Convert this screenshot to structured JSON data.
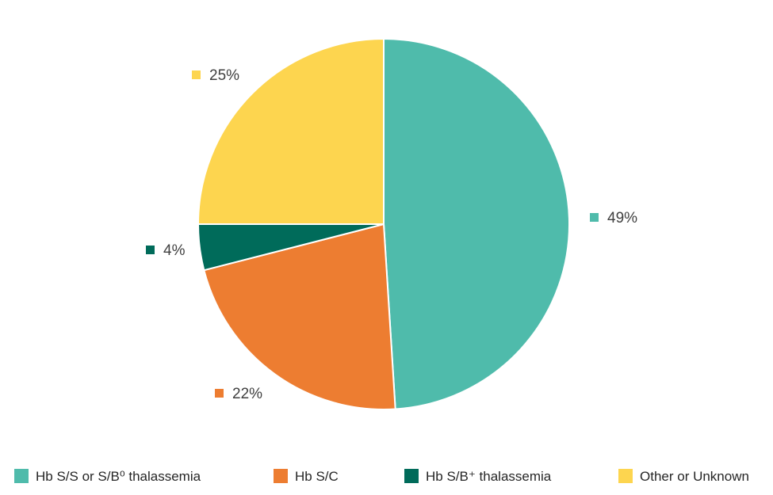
{
  "chart_data": {
    "type": "pie",
    "title": "",
    "legend_position": "bottom",
    "slices": [
      {
        "label": "Hb S/S or S/B⁰ thalassemia",
        "value": 49,
        "display": "49%",
        "color": "#4FBBAB"
      },
      {
        "label": "Hb S/C",
        "value": 22,
        "display": "22%",
        "color": "#ED7D31"
      },
      {
        "label": "Hb S/B⁺ thalassemia",
        "value": 4,
        "display": "4%",
        "color": "#006B5A"
      },
      {
        "label": "Other or Unknown",
        "value": 25,
        "display": "25%",
        "color": "#FDD54F"
      }
    ]
  }
}
